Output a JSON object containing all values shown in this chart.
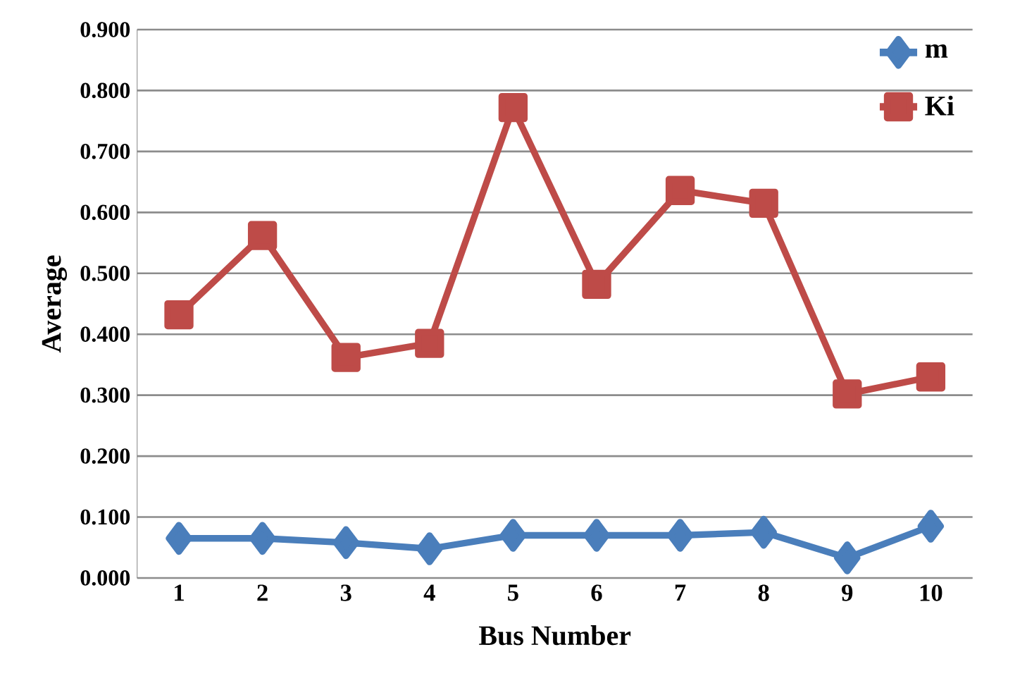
{
  "chart_data": {
    "type": "line",
    "xlabel": "Bus Number",
    "ylabel": "Average",
    "categories": [
      "1",
      "2",
      "3",
      "4",
      "5",
      "6",
      "7",
      "8",
      "9",
      "10"
    ],
    "series": [
      {
        "name": "m",
        "color": "#4a7ebb",
        "marker": "diamond",
        "values": [
          0.065,
          0.065,
          0.058,
          0.048,
          0.07,
          0.07,
          0.07,
          0.075,
          0.033,
          0.085
        ]
      },
      {
        "name": "Ki",
        "color": "#be4b48",
        "marker": "square",
        "values": [
          0.432,
          0.562,
          0.362,
          0.385,
          0.772,
          0.482,
          0.636,
          0.615,
          0.302,
          0.33
        ]
      }
    ],
    "ylim": [
      0,
      0.9
    ],
    "yticks": [
      {
        "value": 0,
        "label": "0.000"
      },
      {
        "value": 0.1,
        "label": "0.100"
      },
      {
        "value": 0.2,
        "label": "0.200"
      },
      {
        "value": 0.3,
        "label": "0.300"
      },
      {
        "value": 0.4,
        "label": "0.400"
      },
      {
        "value": 0.5,
        "label": "0.500"
      },
      {
        "value": 0.6,
        "label": "0.600"
      },
      {
        "value": 0.7,
        "label": "0.700"
      },
      {
        "value": 0.8,
        "label": "0.800"
      },
      {
        "value": 0.9,
        "label": "0.900"
      }
    ],
    "grid": "y",
    "legend": "top right",
    "line_style": "solid"
  }
}
